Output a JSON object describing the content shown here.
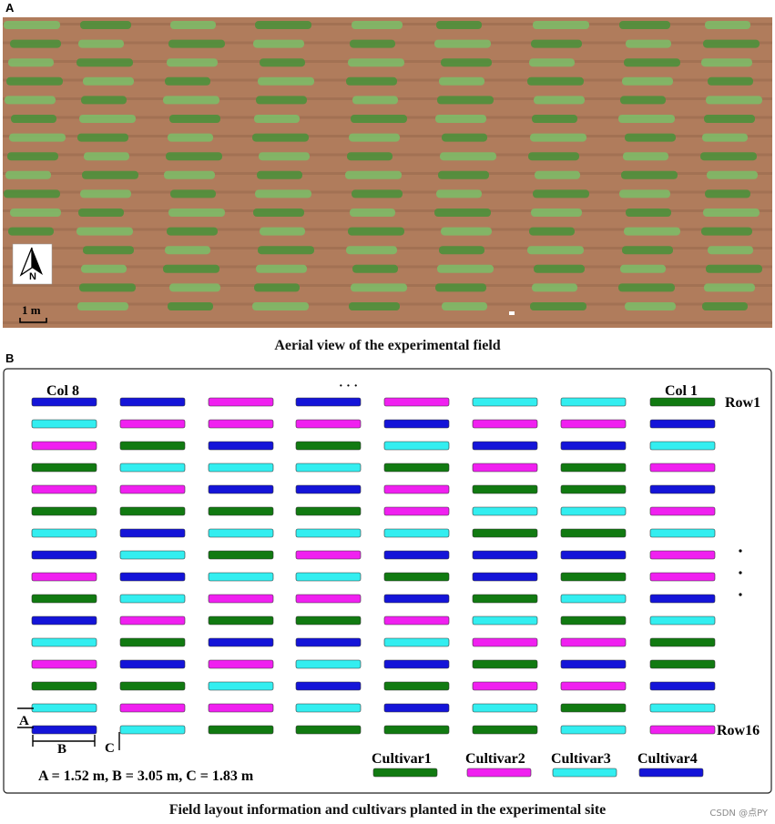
{
  "panels": {
    "a": {
      "letter": "A",
      "caption": "Aerial view of the experimental field"
    },
    "b": {
      "letter": "B",
      "caption": "Field layout information and cultivars planted in the experimental site"
    }
  },
  "aerial": {
    "north_label": "N",
    "scale_label": "1 m",
    "colors": {
      "soil": "#b07c5c",
      "soil_dark": "#93644a",
      "plant": "#4f8f3c",
      "plant_light": "#7fb867"
    }
  },
  "layout": {
    "col_first_label": "Col 8",
    "col_last_label": "Col 1",
    "row_first_label": "Row1",
    "row_last_label": "Row16",
    "ellipsis": "· · ·",
    "dimension_text": "A = 1.52 m, B = 3.05 m, C = 1.83 m",
    "dim_letters": {
      "a": "A",
      "b": "B",
      "c": "C"
    },
    "cultivars": [
      {
        "code": 1,
        "label": "Cultivar1",
        "color": "#117a11"
      },
      {
        "code": 2,
        "label": "Cultivar2",
        "color": "#f020f0"
      },
      {
        "code": 3,
        "label": "Cultivar3",
        "color": "#33eef0"
      },
      {
        "code": 4,
        "label": "Cultivar4",
        "color": "#1414d8"
      }
    ],
    "grid": [
      [
        4,
        4,
        2,
        4,
        2,
        3,
        3,
        1
      ],
      [
        3,
        2,
        2,
        2,
        4,
        2,
        2,
        4
      ],
      [
        2,
        1,
        4,
        1,
        3,
        4,
        4,
        3
      ],
      [
        1,
        3,
        3,
        3,
        1,
        2,
        1,
        2
      ],
      [
        2,
        2,
        4,
        4,
        2,
        1,
        1,
        4
      ],
      [
        1,
        1,
        1,
        1,
        2,
        3,
        3,
        2
      ],
      [
        3,
        4,
        3,
        3,
        3,
        1,
        1,
        3
      ],
      [
        4,
        3,
        1,
        2,
        4,
        4,
        4,
        2
      ],
      [
        2,
        4,
        3,
        3,
        1,
        4,
        1,
        2
      ],
      [
        1,
        3,
        2,
        2,
        4,
        1,
        3,
        4
      ],
      [
        4,
        2,
        1,
        1,
        2,
        3,
        1,
        3
      ],
      [
        3,
        1,
        4,
        4,
        3,
        2,
        2,
        1
      ],
      [
        2,
        4,
        2,
        3,
        4,
        1,
        4,
        1
      ],
      [
        1,
        1,
        3,
        4,
        1,
        2,
        2,
        4
      ],
      [
        3,
        2,
        2,
        3,
        4,
        3,
        1,
        3
      ],
      [
        4,
        3,
        1,
        1,
        1,
        1,
        3,
        2
      ]
    ]
  },
  "watermark": "CSDN @点PY"
}
